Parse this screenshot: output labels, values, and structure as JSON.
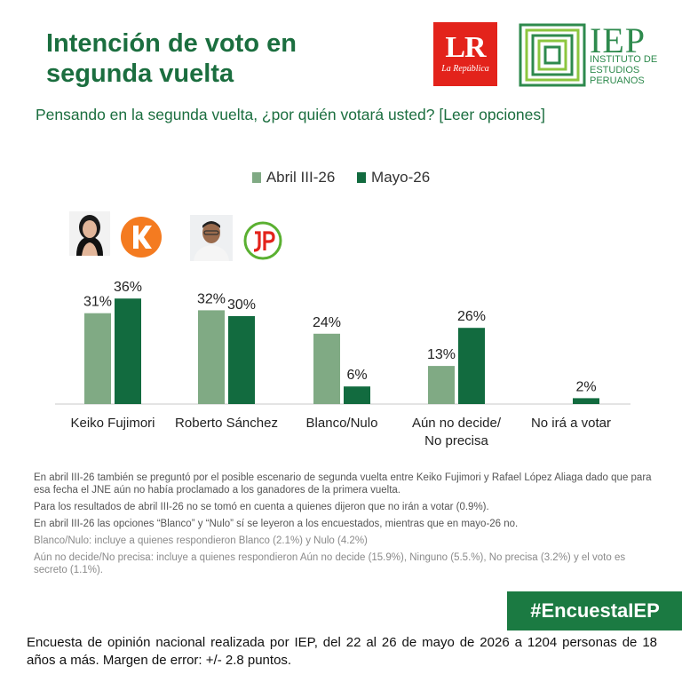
{
  "header": {
    "title": "Intención de voto en segunda vuelta",
    "subtitle": "Pensando en la segunda vuelta, ¿por quién votará usted? [Leer opciones]"
  },
  "logos": {
    "lr_text": "LR",
    "lr_subtext": "La República",
    "iep_text": "IEP",
    "iep_subtext_lines": [
      "INSTITUTO DE",
      "ESTUDIOS",
      "PERUANOS"
    ]
  },
  "colors": {
    "abril": "#80aa84",
    "mayo": "#126b3f",
    "title_green": "#1b6e3f",
    "lr_red": "#e3231b",
    "hashtag_bg": "#1b7a42"
  },
  "icons": [
    "keiko-fujimori-photo",
    "fuerza-popular-k-logo",
    "roberto-sanchez-photo",
    "juntos-por-el-peru-logo"
  ],
  "chart_data": {
    "type": "bar",
    "categories": [
      "Keiko Fujimori",
      "Roberto Sánchez",
      "Blanco/Nulo",
      "Aún no decide/\nNo precisa",
      "No irá a votar"
    ],
    "series": [
      {
        "name": "Abril III-26",
        "values": [
          31,
          32,
          24,
          13,
          null
        ],
        "labels": [
          "31%",
          "32%",
          "24%",
          "13%",
          ""
        ]
      },
      {
        "name": "Mayo-26",
        "values": [
          36,
          30,
          6,
          26,
          2
        ],
        "labels": [
          "36%",
          "30%",
          "6%",
          "26%",
          "2%"
        ]
      }
    ],
    "ylim": [
      0,
      40
    ],
    "legend_position": "top-center",
    "grid": false
  },
  "notes": [
    "En abril III-26 también se preguntó por el posible escenario de segunda vuelta entre Keiko Fujimori y Rafael López Aliaga dado que para esa fecha el JNE aún no había proclamado a los ganadores de la primera vuelta.",
    "Para los resultados de abril III-26 no se tomó en cuenta a quienes dijeron que no irán a votar (0.9%).",
    "En abril III-26 las opciones “Blanco” y “Nulo” sí se leyeron a los encuestados, mientras que en mayo-26 no.",
    "Blanco/Nulo: incluye a quienes respondieron Blanco (2.1%) y Nulo (4.2%)",
    "Aún no decide/No precisa: incluye a quienes respondieron Aún no decide (15.9%), Ninguno (5.5.%), No precisa (3.2%) y el voto es secreto (1.1%)."
  ],
  "hashtag": "#EncuestaIEP",
  "footer": "Encuesta de opinión nacional realizada por IEP, del 22 al 26 de mayo de 2026 a 1204 personas de 18 años a más. Margen de error: +/- 2.8 puntos."
}
